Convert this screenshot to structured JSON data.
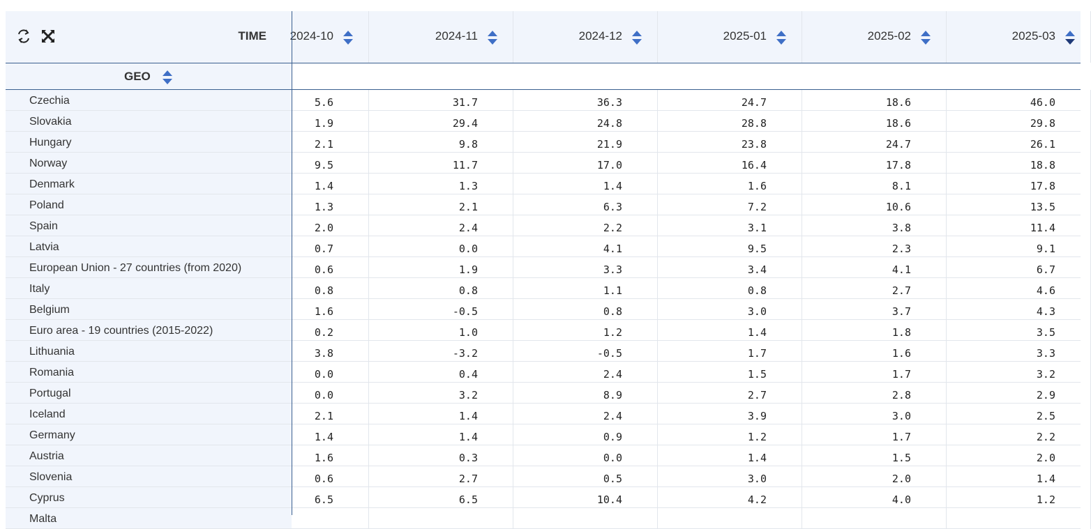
{
  "header": {
    "time_label": "TIME",
    "geo_label": "GEO",
    "columns": [
      {
        "label": "2024-10",
        "sort": "none"
      },
      {
        "label": "2024-11",
        "sort": "none"
      },
      {
        "label": "2024-12",
        "sort": "none"
      },
      {
        "label": "2025-01",
        "sort": "none"
      },
      {
        "label": "2025-02",
        "sort": "none"
      },
      {
        "label": "2025-03",
        "sort": "descending"
      }
    ]
  },
  "icons": {
    "refresh": "refresh-icon",
    "fullscreen": "fullscreen-icon",
    "sort": "sort-icon"
  },
  "colors": {
    "header_bg": "#f1f5fc",
    "sort_inactive": "#3f6fc6",
    "sort_active": "#1f3a78",
    "divider": "#3a5f8f"
  },
  "rows": [
    {
      "geo": "Czechia",
      "values": [
        "5.6",
        "31.7",
        "36.3",
        "24.7",
        "18.6",
        "46.0"
      ]
    },
    {
      "geo": "Slovakia",
      "values": [
        "1.9",
        "29.4",
        "24.8",
        "28.8",
        "18.6",
        "29.8"
      ]
    },
    {
      "geo": "Hungary",
      "values": [
        "2.1",
        "9.8",
        "21.9",
        "23.8",
        "24.7",
        "26.1"
      ]
    },
    {
      "geo": "Norway",
      "values": [
        "9.5",
        "11.7",
        "17.0",
        "16.4",
        "17.8",
        "18.8"
      ]
    },
    {
      "geo": "Denmark",
      "values": [
        "1.4",
        "1.3",
        "1.4",
        "1.6",
        "8.1",
        "17.8"
      ]
    },
    {
      "geo": "Poland",
      "values": [
        "1.3",
        "2.1",
        "6.3",
        "7.2",
        "10.6",
        "13.5"
      ]
    },
    {
      "geo": "Spain",
      "values": [
        "2.0",
        "2.4",
        "2.2",
        "3.1",
        "3.8",
        "11.4"
      ]
    },
    {
      "geo": "Latvia",
      "values": [
        "0.7",
        "0.0",
        "4.1",
        "9.5",
        "2.3",
        "9.1"
      ]
    },
    {
      "geo": "European Union - 27 countries (from 2020)",
      "values": [
        "0.6",
        "1.9",
        "3.3",
        "3.4",
        "4.1",
        "6.7"
      ]
    },
    {
      "geo": "Italy",
      "values": [
        "0.8",
        "0.8",
        "1.1",
        "0.8",
        "2.7",
        "4.6"
      ]
    },
    {
      "geo": "Belgium",
      "values": [
        "1.6",
        "-0.5",
        "0.8",
        "3.0",
        "3.7",
        "4.3"
      ]
    },
    {
      "geo": "Euro area - 19 countries (2015-2022)",
      "values": [
        "0.2",
        "1.0",
        "1.2",
        "1.4",
        "1.8",
        "3.5"
      ]
    },
    {
      "geo": "Lithuania",
      "values": [
        "3.8",
        "-3.2",
        "-0.5",
        "1.7",
        "1.6",
        "3.3"
      ]
    },
    {
      "geo": "Romania",
      "values": [
        "0.0",
        "0.4",
        "2.4",
        "1.5",
        "1.7",
        "3.2"
      ]
    },
    {
      "geo": "Portugal",
      "values": [
        "0.0",
        "3.2",
        "8.9",
        "2.7",
        "2.8",
        "2.9"
      ]
    },
    {
      "geo": "Iceland",
      "values": [
        "2.1",
        "1.4",
        "2.4",
        "3.9",
        "3.0",
        "2.5"
      ]
    },
    {
      "geo": "Germany",
      "values": [
        "1.4",
        "1.4",
        "0.9",
        "1.2",
        "1.7",
        "2.2"
      ]
    },
    {
      "geo": "Austria",
      "values": [
        "1.6",
        "0.3",
        "0.0",
        "1.4",
        "1.5",
        "2.0"
      ]
    },
    {
      "geo": "Slovenia",
      "values": [
        "0.6",
        "2.7",
        "0.5",
        "3.0",
        "2.0",
        "1.4"
      ]
    },
    {
      "geo": "Cyprus",
      "values": [
        "6.5",
        "6.5",
        "10.4",
        "4.2",
        "4.0",
        "1.2"
      ]
    },
    {
      "geo": "Malta",
      "values": [
        "",
        "",
        "",
        "",
        "",
        ""
      ]
    }
  ]
}
